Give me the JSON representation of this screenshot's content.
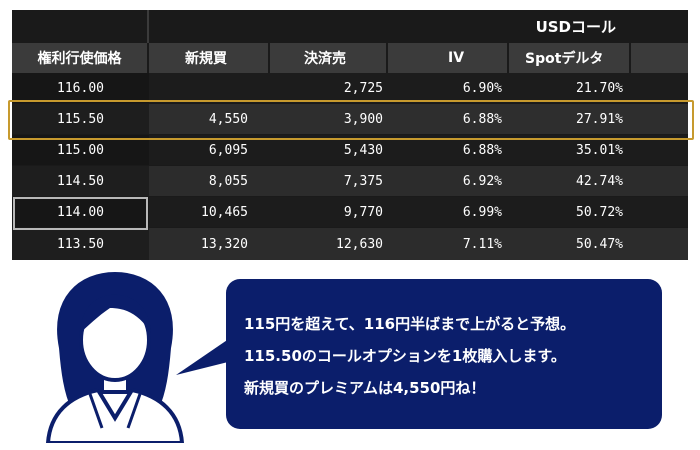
{
  "table": {
    "group_header": "USDコール",
    "columns": [
      "権利行使価格",
      "新規買",
      "決済売",
      "IV",
      "Spotデルタ"
    ],
    "rows": [
      {
        "strike": "116.00",
        "buy": "",
        "sell": "2,725",
        "iv": "6.90%",
        "delta": "21.70%"
      },
      {
        "strike": "115.50",
        "buy": "4,550",
        "sell": "3,900",
        "iv": "6.88%",
        "delta": "27.91%"
      },
      {
        "strike": "115.00",
        "buy": "6,095",
        "sell": "5,430",
        "iv": "6.88%",
        "delta": "35.01%"
      },
      {
        "strike": "114.50",
        "buy": "8,055",
        "sell": "7,375",
        "iv": "6.92%",
        "delta": "42.74%"
      },
      {
        "strike": "114.00",
        "buy": "10,465",
        "sell": "9,770",
        "iv": "6.99%",
        "delta": "50.72%"
      },
      {
        "strike": "113.50",
        "buy": "13,320",
        "sell": "12,630",
        "iv": "7.11%",
        "delta": "50.47%"
      }
    ]
  },
  "speech": {
    "lines": [
      "115円を超えて、116円半ばまで上がると予想。",
      "115.50のコールオプションを1枚購入します。",
      "新規買のプレミアムは4,550円ね！"
    ]
  },
  "colors": {
    "board_bg": "#1a1a1a",
    "header_bg": "#3b3b3b",
    "highlight_border": "#c79a2e",
    "bubble_bg": "#0b1e6b",
    "person_color": "#0b1e6b"
  }
}
